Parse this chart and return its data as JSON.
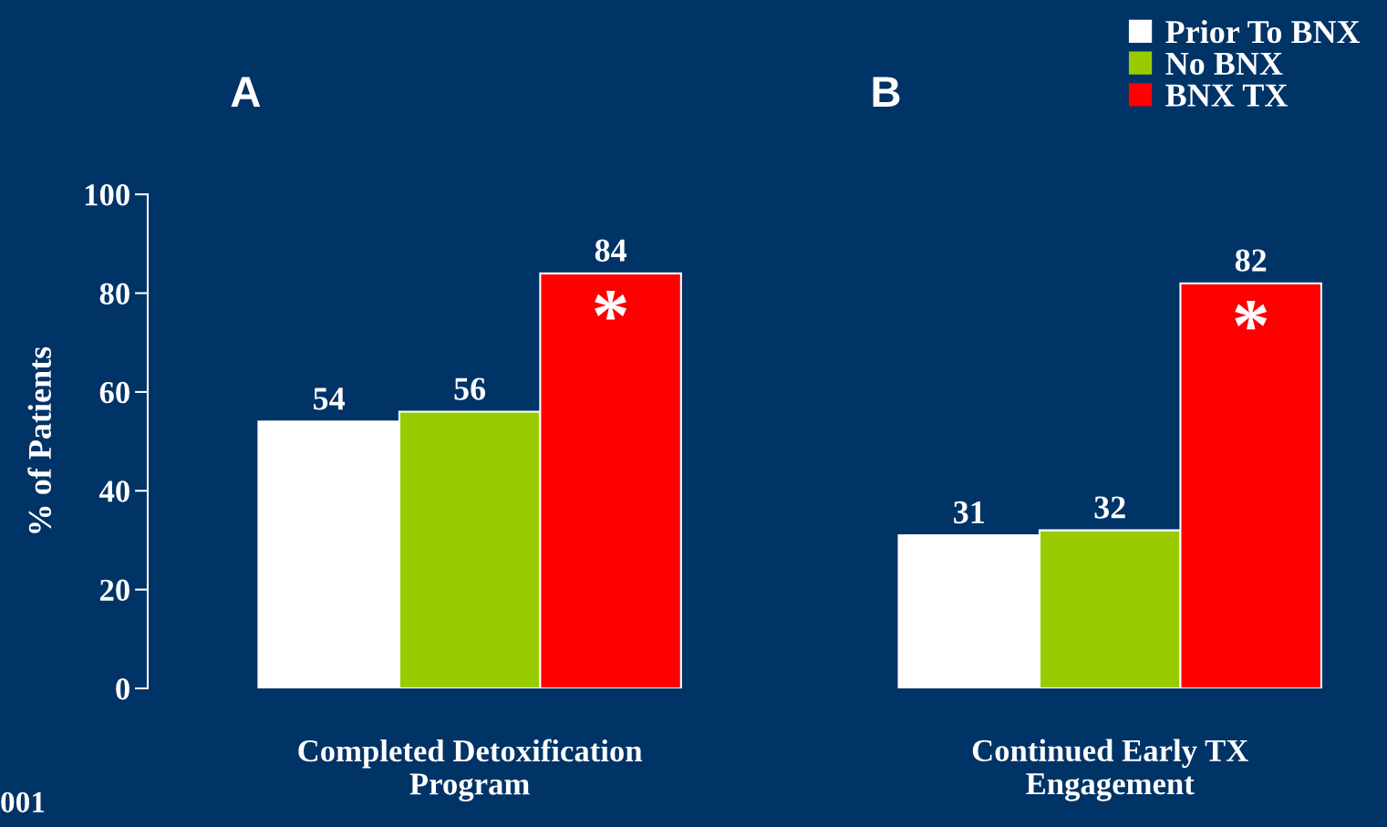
{
  "chart_data": {
    "type": "bar",
    "ylabel": "% of Patients",
    "categories": [
      "Completed Detoxification Program",
      "Continued Early TX Engagement"
    ],
    "series": [
      {
        "name": "Prior To BNX",
        "color": "#ffffff",
        "values": [
          54,
          31
        ]
      },
      {
        "name": "No BNX",
        "color": "#99cc00",
        "values": [
          56,
          32
        ]
      },
      {
        "name": "BNX TX",
        "color": "#ff0000",
        "values": [
          84,
          82
        ]
      }
    ],
    "ylim": [
      0,
      100
    ],
    "yticks": [
      0,
      20,
      40,
      60,
      80,
      100
    ],
    "data_labels": true,
    "grid": false,
    "legend": "top right",
    "annotations": [
      "A",
      "B",
      "*",
      "*",
      "001"
    ]
  }
}
